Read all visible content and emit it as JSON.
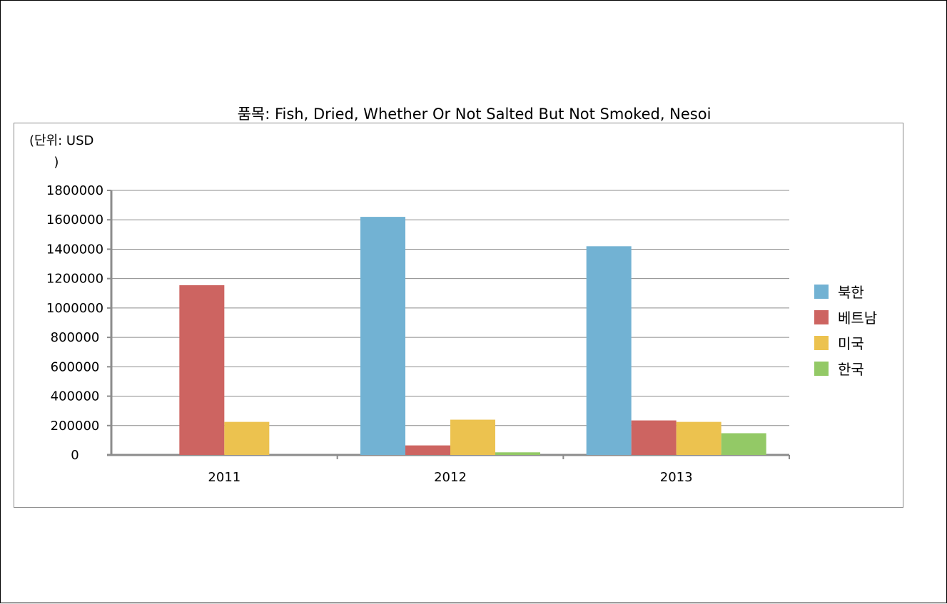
{
  "chart_data": {
    "type": "bar",
    "title": "품목: Fish, Dried, Whether Or Not Salted But Not Smoked, Nesoi",
    "unit_label": "(단위: USD\n      )",
    "categories": [
      "2011",
      "2012",
      "2013"
    ],
    "series": [
      {
        "name": "북한",
        "color": "#72b2d3",
        "values": [
          0,
          1620000,
          1420000
        ]
      },
      {
        "name": "베트남",
        "color": "#cd6461",
        "values": [
          1155000,
          65000,
          235000
        ]
      },
      {
        "name": "미국",
        "color": "#ecc24f",
        "values": [
          225000,
          240000,
          225000
        ]
      },
      {
        "name": "한국",
        "color": "#93c966",
        "values": [
          0,
          18000,
          148000
        ]
      }
    ],
    "yticks": [
      "0",
      "200000",
      "400000",
      "600000",
      "800000",
      "1000000",
      "1200000",
      "1400000",
      "1600000",
      "1800000"
    ],
    "ylim": [
      0,
      1800000
    ],
    "grid": true,
    "legend_position": "right"
  }
}
